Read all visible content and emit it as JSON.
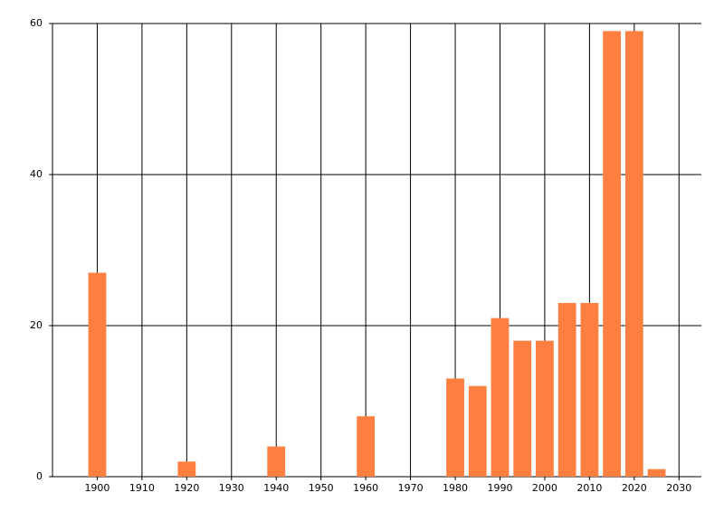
{
  "chart_data": {
    "type": "bar",
    "x": [
      1900,
      1920,
      1940,
      1960,
      1980,
      1985,
      1990,
      1995,
      2000,
      2005,
      2010,
      2015,
      2020,
      2025
    ],
    "values": [
      27,
      2,
      4,
      8,
      13,
      12,
      21,
      18,
      18,
      23,
      23,
      59,
      59,
      1
    ],
    "color": "#ff7f41",
    "xlim": [
      1890,
      2035
    ],
    "xticks": [
      1900,
      1910,
      1920,
      1930,
      1940,
      1950,
      1960,
      1970,
      1980,
      1990,
      2000,
      2010,
      2020,
      2030
    ],
    "ylim": [
      0,
      60
    ],
    "yticks": [
      0,
      20,
      40,
      60
    ],
    "grid": true
  }
}
